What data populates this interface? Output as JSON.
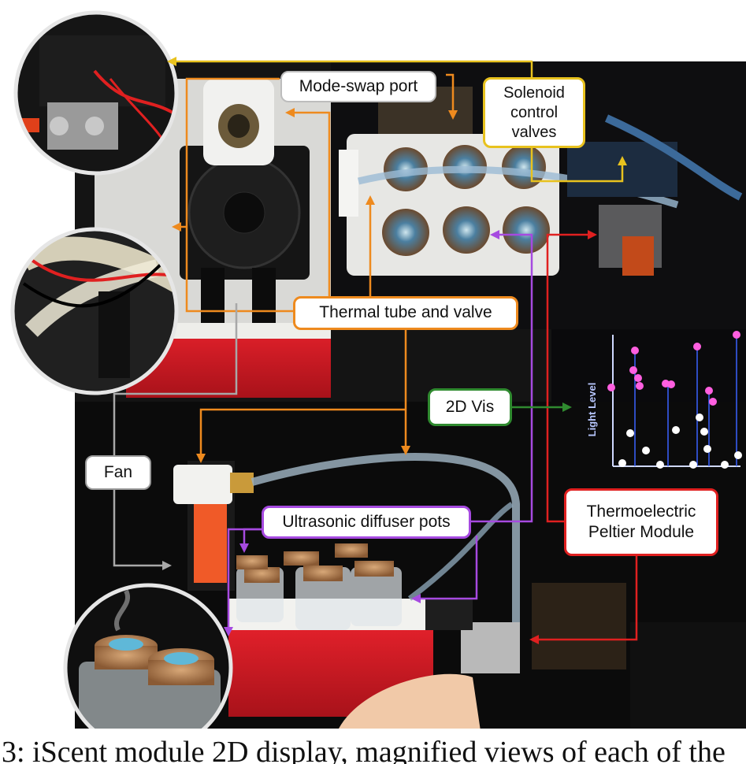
{
  "labels": {
    "mode_swap": "Mode-swap port",
    "solenoid": [
      "Solenoid",
      "control",
      "valves"
    ],
    "thermal": "Thermal tube and valve",
    "vis2d": "2D Vis",
    "fan": "Fan",
    "ultrasonic": "Ultrasonic diffuser pots",
    "peltier": [
      "Thermoelectric",
      "Peltier Module"
    ]
  },
  "plot": {
    "ylabel": "Light Level"
  },
  "caption": "3: iScent module 2D display, magnified views of each of the"
}
